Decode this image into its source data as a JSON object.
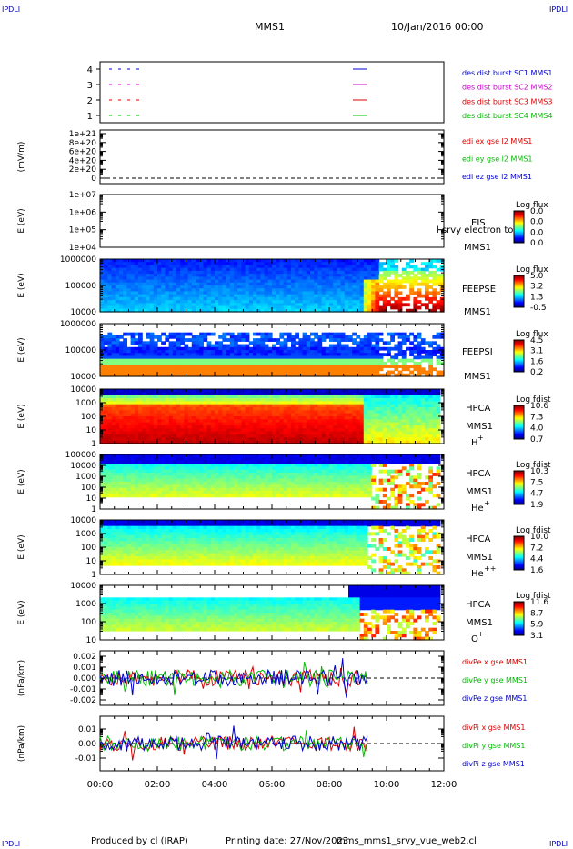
{
  "corner_label": "IPDLI",
  "header": {
    "title": "MMS1",
    "date": "10/Jan/2016 00:00"
  },
  "footer": {
    "produced_by": "Produced by cl (IRAP)",
    "printing_date": "Printing date: 27/Nov/2023",
    "script_name": "mms_mms1_srvy_vue_web2.cl"
  },
  "chart_data": [
    {
      "type": "line",
      "panel": "burst_availability",
      "yticks": [
        "4",
        "3",
        "2",
        "1"
      ],
      "series": [
        {
          "name": "des dist burst SC1 MMS1",
          "color": "#0000cc",
          "level": 4
        },
        {
          "name": "des dist burst SC2 MMS2",
          "color": "#cc00cc",
          "level": 3
        },
        {
          "name": "des dist burst SC3 MMS3",
          "color": "#dd0000",
          "level": 2
        },
        {
          "name": "des dist burst SC4 MMS4",
          "color": "#00bb00",
          "level": 1
        }
      ]
    },
    {
      "type": "line",
      "panel": "edi_efield",
      "ylabel": "(mV/m)",
      "yticks": [
        "1e+21",
        "8e+20",
        "6e+20",
        "4e+20",
        "2e+20",
        "0"
      ],
      "series": [
        {
          "name": "edi ex gse l2 MMS1",
          "color": "#dd0000"
        },
        {
          "name": "edi ey gse l2 MMS1",
          "color": "#00bb00"
        },
        {
          "name": "edi ez gse l2 MMS1",
          "color": "#0000cc"
        }
      ]
    },
    {
      "type": "heatmap",
      "panel": "eis",
      "ylabel": "E (eV)",
      "yticks": [
        "1e+07",
        "1e+06",
        "1e+05",
        "1e+04"
      ],
      "instrument": "EIS",
      "overlay_text": "l srvy electron to",
      "spacecraft": "MMS1",
      "colorbar": {
        "title": "Log flux",
        "ticks": [
          "0.0",
          "0.0",
          "0.0",
          "0.0"
        ]
      }
    },
    {
      "type": "heatmap",
      "panel": "feeps_electron",
      "ylabel": "E (eV)",
      "yticks": [
        "1000000",
        "100000",
        "10000"
      ],
      "instrument": "FEEPSE",
      "spacecraft": "MMS1",
      "colorbar": {
        "title": "Log flux",
        "ticks": [
          "5.0",
          "3.2",
          "1.3",
          "-0.5"
        ]
      }
    },
    {
      "type": "heatmap",
      "panel": "feeps_ion",
      "ylabel": "E (eV)",
      "yticks": [
        "1000000",
        "100000",
        "10000"
      ],
      "instrument": "FEEPSI",
      "spacecraft": "MMS1",
      "colorbar": {
        "title": "Log flux",
        "ticks": [
          "4.5",
          "3.1",
          "1.6",
          "0.2"
        ]
      }
    },
    {
      "type": "heatmap",
      "panel": "hpca_hplus",
      "ylabel": "E (eV)",
      "yticks": [
        "10000",
        "1000",
        "100",
        "10",
        "1"
      ],
      "instrument": "HPCA",
      "spacecraft": "MMS1",
      "species": "H",
      "charge": "+",
      "colorbar": {
        "title": "Log fdist",
        "ticks": [
          "10.6",
          "7.3",
          "4.0",
          "0.7"
        ]
      }
    },
    {
      "type": "heatmap",
      "panel": "hpca_heplus",
      "ylabel": "E (eV)",
      "yticks": [
        "100000",
        "10000",
        "1000",
        "100",
        "10",
        "1"
      ],
      "instrument": "HPCA",
      "spacecraft": "MMS1",
      "species": "He",
      "charge": "+",
      "colorbar": {
        "title": "Log fdist",
        "ticks": [
          "10.3",
          "7.5",
          "4.7",
          "1.9"
        ]
      }
    },
    {
      "type": "heatmap",
      "panel": "hpca_heplusplus",
      "ylabel": "E (eV)",
      "yticks": [
        "10000",
        "1000",
        "100",
        "10",
        "1"
      ],
      "instrument": "HPCA",
      "spacecraft": "MMS1",
      "species": "He",
      "charge": "++",
      "colorbar": {
        "title": "Log fdist",
        "ticks": [
          "10.0",
          "7.2",
          "4.4",
          "1.6"
        ]
      }
    },
    {
      "type": "heatmap",
      "panel": "hpca_oplus",
      "ylabel": "E (eV)",
      "yticks": [
        "10000",
        "1000",
        "100",
        "10"
      ],
      "instrument": "HPCA",
      "spacecraft": "MMS1",
      "species": "O",
      "charge": "+",
      "colorbar": {
        "title": "Log fdist",
        "ticks": [
          "11.6",
          "8.7",
          "5.9",
          "3.1"
        ]
      }
    },
    {
      "type": "line",
      "panel": "div_pe",
      "ylabel": "(nPa/km)",
      "yticks": [
        "0.002",
        "0.001",
        "0.000",
        "-0.001",
        "-0.002"
      ],
      "series": [
        {
          "name": "divPe x gse MMS1",
          "color": "#dd0000"
        },
        {
          "name": "divPe y gse MMS1",
          "color": "#00bb00"
        },
        {
          "name": "divPe z gse MMS1",
          "color": "#0000cc"
        }
      ]
    },
    {
      "type": "line",
      "panel": "div_pi",
      "ylabel": "(nPa/km)",
      "yticks": [
        "0.01",
        "0.00",
        "-0.01"
      ],
      "xticks": [
        "00:00",
        "02:00",
        "04:00",
        "06:00",
        "08:00",
        "10:00",
        "12:00"
      ],
      "series": [
        {
          "name": "divPi x gse MMS1",
          "color": "#dd0000"
        },
        {
          "name": "divPi y gse MMS1",
          "color": "#00bb00"
        },
        {
          "name": "divPi z gse MMS1",
          "color": "#0000cc"
        }
      ]
    }
  ]
}
